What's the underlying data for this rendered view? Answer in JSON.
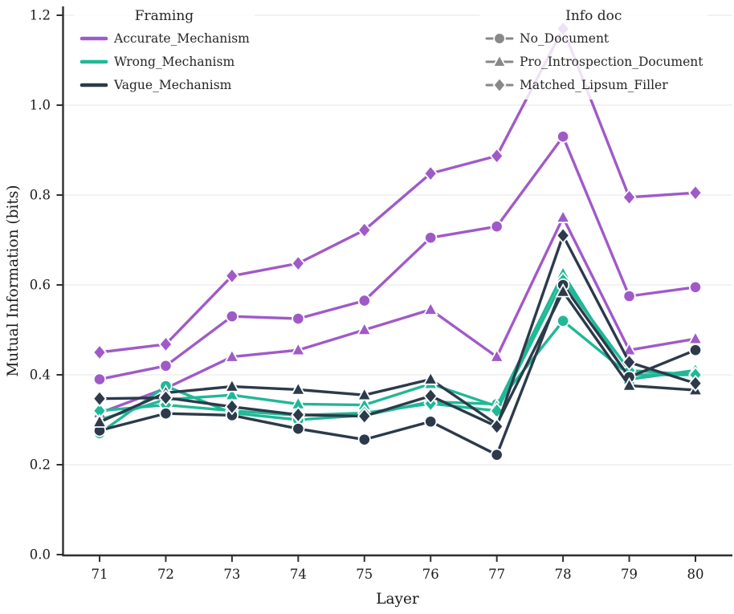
{
  "figure": {
    "background": "#ffffff",
    "text_color": "#262626",
    "grid_color": "#ededed",
    "spine_color": "#2f2f2f",
    "legend_gray": "#888888"
  },
  "chart_data": {
    "type": "line",
    "title": "",
    "xlabel": "Layer",
    "ylabel": "Mutual Information (bits)",
    "x": [
      71,
      72,
      73,
      74,
      75,
      76,
      77,
      78,
      79,
      80
    ],
    "xlim": [
      70.5,
      80.5
    ],
    "ylim": [
      0.0,
      1.2
    ],
    "yticks": [
      0.0,
      0.2,
      0.4,
      0.6,
      0.8,
      1.0,
      1.2
    ],
    "ytick_labels": [
      "0.0",
      "0.2",
      "0.4",
      "0.6",
      "0.8",
      "1.0",
      "1.2"
    ],
    "xtick_labels": [
      "71",
      "72",
      "73",
      "74",
      "75",
      "76",
      "77",
      "78",
      "79",
      "80"
    ],
    "grid": "horizontal",
    "legend_framing": {
      "title": "Framing",
      "entries": [
        {
          "label": "Accurate_Mechanism",
          "color": "#a05ac8"
        },
        {
          "label": "Wrong_Mechanism",
          "color": "#20b897"
        },
        {
          "label": "Vague_Mechanism",
          "color": "#2c3a4a"
        }
      ]
    },
    "legend_infodoc": {
      "title": "Info doc",
      "color": "#888888",
      "entries": [
        {
          "label": "No_Document",
          "marker": "circle"
        },
        {
          "label": "Pro_Introspection_Document",
          "marker": "triangle"
        },
        {
          "label": "Matched_Lipsum_Filler",
          "marker": "diamond"
        }
      ]
    },
    "series": [
      {
        "framing": "Accurate_Mechanism",
        "info_doc": "No_Document",
        "color": "#a05ac8",
        "marker": "circle",
        "values": [
          0.39,
          0.42,
          0.53,
          0.525,
          0.565,
          0.705,
          0.73,
          0.93,
          0.575,
          0.595
        ]
      },
      {
        "framing": "Accurate_Mechanism",
        "info_doc": "Pro_Introspection_Document",
        "color": "#a05ac8",
        "marker": "triangle",
        "values": [
          0.315,
          0.37,
          0.44,
          0.455,
          0.5,
          0.545,
          0.44,
          0.75,
          0.455,
          0.48
        ]
      },
      {
        "framing": "Accurate_Mechanism",
        "info_doc": "Matched_Lipsum_Filler",
        "color": "#a05ac8",
        "marker": "diamond",
        "values": [
          0.45,
          0.468,
          0.62,
          0.648,
          0.722,
          0.848,
          0.887,
          1.17,
          0.795,
          0.805
        ]
      },
      {
        "framing": "Wrong_Mechanism",
        "info_doc": "No_Document",
        "color": "#20b897",
        "marker": "circle",
        "values": [
          0.27,
          0.375,
          0.315,
          0.3,
          0.31,
          0.34,
          0.335,
          0.52,
          0.4,
          0.4
        ]
      },
      {
        "framing": "Wrong_Mechanism",
        "info_doc": "Pro_Introspection_Document",
        "color": "#20b897",
        "marker": "triangle",
        "values": [
          0.3,
          0.345,
          0.355,
          0.335,
          0.333,
          0.38,
          0.33,
          0.625,
          0.39,
          0.41
        ]
      },
      {
        "framing": "Wrong_Mechanism",
        "info_doc": "Matched_Lipsum_Filler",
        "color": "#20b897",
        "marker": "diamond",
        "values": [
          0.32,
          0.333,
          0.32,
          0.31,
          0.315,
          0.336,
          0.32,
          0.61,
          0.41,
          0.4
        ]
      },
      {
        "framing": "Vague_Mechanism",
        "info_doc": "No_Document",
        "color": "#2c3a4a",
        "marker": "circle",
        "values": [
          0.276,
          0.314,
          0.31,
          0.28,
          0.256,
          0.296,
          0.222,
          0.6,
          0.395,
          0.455
        ]
      },
      {
        "framing": "Vague_Mechanism",
        "info_doc": "Pro_Introspection_Document",
        "color": "#2c3a4a",
        "marker": "triangle",
        "values": [
          0.295,
          0.36,
          0.374,
          0.367,
          0.355,
          0.39,
          0.29,
          0.585,
          0.376,
          0.366
        ]
      },
      {
        "framing": "Vague_Mechanism",
        "info_doc": "Matched_Lipsum_Filler",
        "color": "#2c3a4a",
        "marker": "diamond",
        "values": [
          0.347,
          0.349,
          0.329,
          0.311,
          0.308,
          0.353,
          0.285,
          0.71,
          0.428,
          0.381
        ]
      }
    ]
  }
}
